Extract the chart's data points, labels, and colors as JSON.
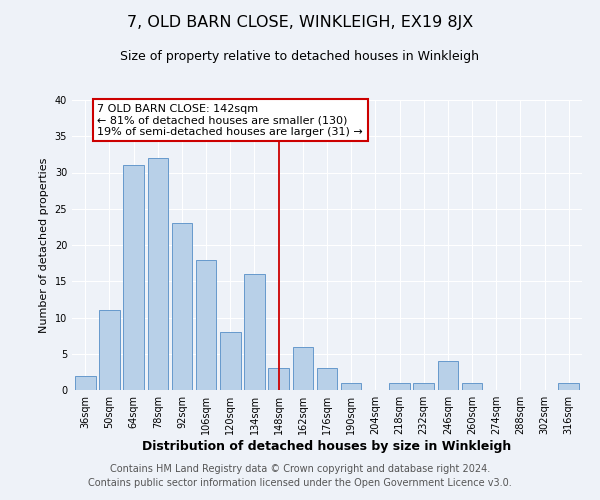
{
  "title": "7, OLD BARN CLOSE, WINKLEIGH, EX19 8JX",
  "subtitle": "Size of property relative to detached houses in Winkleigh",
  "xlabel": "Distribution of detached houses by size in Winkleigh",
  "ylabel": "Number of detached properties",
  "bar_labels": [
    "36sqm",
    "50sqm",
    "64sqm",
    "78sqm",
    "92sqm",
    "106sqm",
    "120sqm",
    "134sqm",
    "148sqm",
    "162sqm",
    "176sqm",
    "190sqm",
    "204sqm",
    "218sqm",
    "232sqm",
    "246sqm",
    "260sqm",
    "274sqm",
    "288sqm",
    "302sqm",
    "316sqm"
  ],
  "bar_values": [
    2,
    11,
    31,
    32,
    23,
    18,
    8,
    16,
    3,
    6,
    3,
    1,
    0,
    1,
    1,
    4,
    1,
    0,
    0,
    0,
    1
  ],
  "bar_color": "#b8d0e8",
  "bar_edge_color": "#6699cc",
  "highlight_color": "#cc0000",
  "ylim": [
    0,
    40
  ],
  "yticks": [
    0,
    5,
    10,
    15,
    20,
    25,
    30,
    35,
    40
  ],
  "annotation_title": "7 OLD BARN CLOSE: 142sqm",
  "annotation_line1": "← 81% of detached houses are smaller (130)",
  "annotation_line2": "19% of semi-detached houses are larger (31) →",
  "annotation_box_color": "#ffffff",
  "annotation_box_edge": "#cc0000",
  "footer_line1": "Contains HM Land Registry data © Crown copyright and database right 2024.",
  "footer_line2": "Contains public sector information licensed under the Open Government Licence v3.0.",
  "background_color": "#eef2f8",
  "grid_color": "#ffffff",
  "title_fontsize": 11.5,
  "subtitle_fontsize": 9,
  "xlabel_fontsize": 9,
  "ylabel_fontsize": 8,
  "tick_fontsize": 7,
  "annotation_fontsize": 8,
  "footer_fontsize": 7
}
